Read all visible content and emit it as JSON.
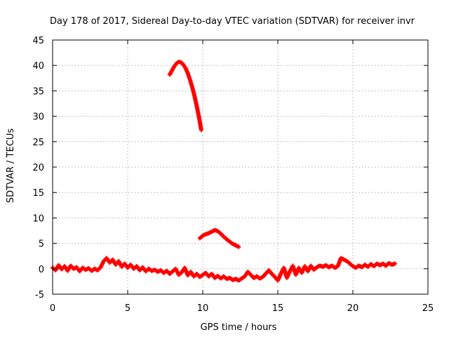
{
  "chart_data": {
    "type": "scatter",
    "title": "Day 178 of 2017, Sidereal Day-to-day VTEC variation (SDTVAR) for receiver invr",
    "xlabel": "GPS time / hours",
    "ylabel": "SDTVAR / TECUs",
    "xlim": [
      0,
      25
    ],
    "ylim": [
      -5,
      45
    ],
    "xticks": [
      0,
      5,
      10,
      15,
      20,
      25
    ],
    "yticks": [
      -5,
      0,
      5,
      10,
      15,
      20,
      25,
      30,
      35,
      40,
      45
    ],
    "grid": true,
    "series": [
      {
        "name": "SDTVAR",
        "marker": "plus",
        "color": "#ff0000",
        "segments": [
          [
            [
              0,
              0.2
            ],
            [
              0.2,
              -0.3
            ],
            [
              0.4,
              0.7
            ],
            [
              0.6,
              -0.1
            ],
            [
              0.8,
              0.5
            ],
            [
              1.0,
              -0.4
            ],
            [
              1.2,
              0.6
            ],
            [
              1.4,
              0.0
            ],
            [
              1.6,
              0.3
            ],
            [
              1.8,
              -0.5
            ],
            [
              2.0,
              0.2
            ],
            [
              2.2,
              -0.2
            ],
            [
              2.4,
              0.1
            ],
            [
              2.6,
              -0.4
            ],
            [
              2.8,
              0.0
            ],
            [
              3.0,
              -0.3
            ],
            [
              3.2,
              0.3
            ],
            [
              3.4,
              1.5
            ],
            [
              3.6,
              2.1
            ],
            [
              3.8,
              1.2
            ],
            [
              4.0,
              1.8
            ],
            [
              4.2,
              0.8
            ],
            [
              4.4,
              1.5
            ],
            [
              4.6,
              0.4
            ],
            [
              4.8,
              1.0
            ],
            [
              5.0,
              0.2
            ],
            [
              5.2,
              0.8
            ],
            [
              5.4,
              0.0
            ],
            [
              5.6,
              0.5
            ],
            [
              5.8,
              -0.3
            ],
            [
              6.0,
              0.3
            ],
            [
              6.2,
              -0.5
            ],
            [
              6.4,
              0.0
            ],
            [
              6.6,
              -0.4
            ],
            [
              6.8,
              -0.2
            ],
            [
              7.0,
              -0.6
            ],
            [
              7.2,
              -0.3
            ],
            [
              7.4,
              -0.8
            ],
            [
              7.6,
              -0.4
            ],
            [
              7.8,
              -1.0
            ],
            [
              8.0,
              -0.5
            ],
            [
              8.2,
              0.0
            ],
            [
              8.4,
              -1.2
            ],
            [
              8.6,
              -0.7
            ],
            [
              8.8,
              0.2
            ],
            [
              9.0,
              -1.3
            ],
            [
              9.2,
              -0.6
            ],
            [
              9.4,
              -1.5
            ],
            [
              9.6,
              -1.0
            ],
            [
              9.8,
              -1.6
            ],
            [
              10.0,
              -1.2
            ],
            [
              10.2,
              -0.8
            ],
            [
              10.4,
              -1.5
            ],
            [
              10.6,
              -1.0
            ],
            [
              10.8,
              -1.8
            ],
            [
              11.0,
              -1.4
            ],
            [
              11.2,
              -1.9
            ],
            [
              11.4,
              -1.5
            ],
            [
              11.6,
              -2.0
            ],
            [
              11.8,
              -1.8
            ],
            [
              12.0,
              -2.2
            ],
            [
              12.2,
              -2.0
            ],
            [
              12.4,
              -2.3
            ],
            [
              12.8,
              -1.5
            ],
            [
              13.0,
              -0.6
            ],
            [
              13.2,
              -1.2
            ],
            [
              13.4,
              -1.8
            ],
            [
              13.6,
              -1.5
            ],
            [
              13.8,
              -1.9
            ],
            [
              14.0,
              -1.6
            ],
            [
              14.4,
              -0.3
            ],
            [
              14.6,
              -1.0
            ],
            [
              14.8,
              -1.6
            ],
            [
              15.0,
              -2.3
            ],
            [
              15.2,
              -1.0
            ],
            [
              15.4,
              0.2
            ],
            [
              15.6,
              -1.8
            ],
            [
              15.8,
              -0.5
            ],
            [
              16.0,
              0.6
            ],
            [
              16.2,
              -1.2
            ],
            [
              16.4,
              0.2
            ],
            [
              16.6,
              -0.8
            ],
            [
              16.8,
              0.5
            ],
            [
              17.0,
              -0.5
            ],
            [
              17.2,
              0.6
            ],
            [
              17.4,
              -0.2
            ],
            [
              17.6,
              0.3
            ],
            [
              17.8,
              0.6
            ],
            [
              18.0,
              0.4
            ],
            [
              18.2,
              0.7
            ],
            [
              18.4,
              0.3
            ],
            [
              18.6,
              0.6
            ],
            [
              18.8,
              0.2
            ],
            [
              19.0,
              0.5
            ],
            [
              19.2,
              2.1
            ],
            [
              19.4,
              1.8
            ],
            [
              19.6,
              1.5
            ],
            [
              19.8,
              1.0
            ],
            [
              20.0,
              0.5
            ],
            [
              20.2,
              0.2
            ],
            [
              20.4,
              0.6
            ],
            [
              20.6,
              0.3
            ],
            [
              20.8,
              0.8
            ],
            [
              21.0,
              0.4
            ],
            [
              21.2,
              0.9
            ],
            [
              21.4,
              0.5
            ],
            [
              21.6,
              1.0
            ],
            [
              21.8,
              0.7
            ],
            [
              22.0,
              1.0
            ],
            [
              22.2,
              0.6
            ],
            [
              22.4,
              1.1
            ],
            [
              22.6,
              0.8
            ],
            [
              22.8,
              1.0
            ]
          ],
          [
            [
              7.8,
              38.2
            ],
            [
              7.95,
              39.0
            ],
            [
              8.1,
              39.8
            ],
            [
              8.25,
              40.4
            ],
            [
              8.4,
              40.7
            ],
            [
              8.55,
              40.6
            ],
            [
              8.7,
              40.2
            ],
            [
              8.85,
              39.5
            ],
            [
              9.0,
              38.5
            ],
            [
              9.15,
              37.2
            ],
            [
              9.3,
              35.7
            ],
            [
              9.45,
              34.0
            ],
            [
              9.6,
              32.0
            ],
            [
              9.75,
              29.8
            ],
            [
              9.9,
              27.3
            ]
          ],
          [
            [
              9.8,
              6.0
            ],
            [
              10.0,
              6.5
            ],
            [
              10.2,
              6.8
            ],
            [
              10.4,
              7.0
            ],
            [
              10.6,
              7.3
            ],
            [
              10.8,
              7.6
            ],
            [
              11.0,
              7.4
            ],
            [
              11.2,
              6.9
            ],
            [
              11.4,
              6.3
            ],
            [
              11.6,
              5.8
            ],
            [
              11.8,
              5.3
            ],
            [
              12.0,
              4.9
            ],
            [
              12.2,
              4.6
            ],
            [
              12.4,
              4.3
            ]
          ]
        ]
      }
    ]
  }
}
